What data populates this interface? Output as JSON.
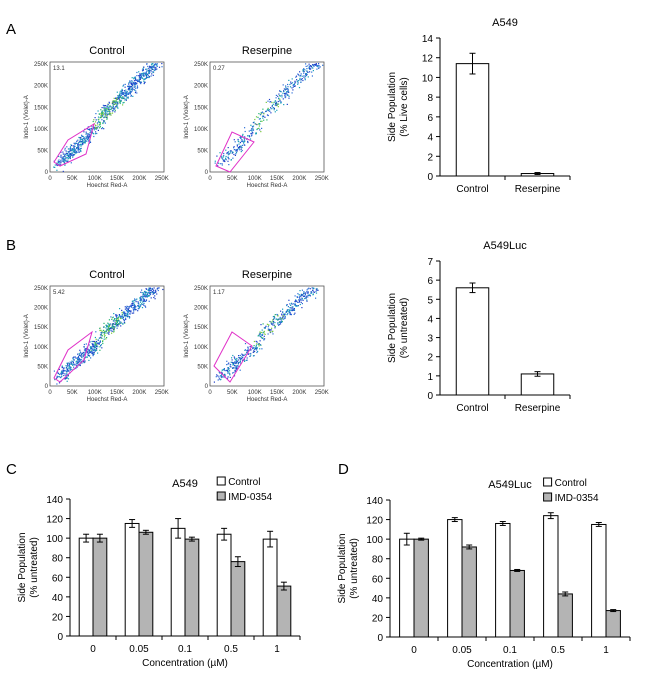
{
  "panels": {
    "a": "A",
    "b": "B",
    "c": "C",
    "d": "D"
  },
  "flow": {
    "a_control": {
      "title": "Control",
      "gate": "13.1"
    },
    "a_reserpine": {
      "title": "Reserpine",
      "gate": "0.27"
    },
    "b_control": {
      "title": "Control",
      "gate": "5.42"
    },
    "b_reserpine": {
      "title": "Reserpine",
      "gate": "1.17"
    },
    "x_axis_label": "Hoechst Red-A",
    "y_axis_label": "Indo-1 (Violet)-A",
    "ticks": [
      "0",
      "50K",
      "100K",
      "150K",
      "200K",
      "250K"
    ]
  },
  "chart_data": [
    {
      "id": "A",
      "type": "bar",
      "title": "A549",
      "ylabel": [
        "Side Population",
        "(% Live cells)"
      ],
      "categories": [
        "Control",
        "Reserpine"
      ],
      "ylim": [
        0,
        14
      ],
      "yticks": [
        0,
        2,
        4,
        6,
        8,
        10,
        12,
        14
      ],
      "values": [
        11.4,
        0.25
      ],
      "errors": [
        1.05,
        0.1
      ]
    },
    {
      "id": "B",
      "type": "bar",
      "title": "A549Luc",
      "ylabel": [
        "Side Population",
        "(% untreated)"
      ],
      "categories": [
        "Control",
        "Reserpine"
      ],
      "ylim": [
        0,
        7
      ],
      "yticks": [
        0,
        1,
        2,
        3,
        4,
        5,
        6,
        7
      ],
      "values": [
        5.6,
        1.1
      ],
      "errors": [
        0.25,
        0.12
      ]
    },
    {
      "id": "C",
      "type": "bar",
      "title": "A549",
      "ylabel": [
        "Side Population",
        "(% untreated)"
      ],
      "xlabel": "Concentration (µM)",
      "categories": [
        "0",
        "0.05",
        "0.1",
        "0.5",
        "1"
      ],
      "ylim": [
        0,
        140
      ],
      "yticks": [
        0,
        20,
        40,
        60,
        80,
        100,
        120,
        140
      ],
      "series": [
        {
          "name": "Control",
          "color": "#ffffff",
          "values": [
            100,
            115,
            110,
            104,
            99
          ],
          "errors": [
            4,
            4,
            10,
            6,
            8
          ]
        },
        {
          "name": "IMD-0354",
          "color": "#b4b4b4",
          "values": [
            100,
            106,
            99,
            76,
            51
          ],
          "errors": [
            4,
            2,
            2,
            5,
            4
          ]
        }
      ]
    },
    {
      "id": "D",
      "type": "bar",
      "title": "A549Luc",
      "ylabel": [
        "Side Population",
        "(% untreated)"
      ],
      "xlabel": "Concentration (µM)",
      "categories": [
        "0",
        "0.05",
        "0.1",
        "0.5",
        "1"
      ],
      "ylim": [
        0,
        140
      ],
      "yticks": [
        0,
        20,
        40,
        60,
        80,
        100,
        120,
        140
      ],
      "series": [
        {
          "name": "Control",
          "color": "#ffffff",
          "values": [
            100,
            120,
            116,
            124,
            115
          ],
          "errors": [
            6,
            2,
            2,
            3,
            2
          ]
        },
        {
          "name": "IMD-0354",
          "color": "#b4b4b4",
          "values": [
            100,
            92,
            68,
            44,
            27
          ],
          "errors": [
            1,
            2,
            1,
            2,
            1
          ]
        }
      ]
    }
  ]
}
